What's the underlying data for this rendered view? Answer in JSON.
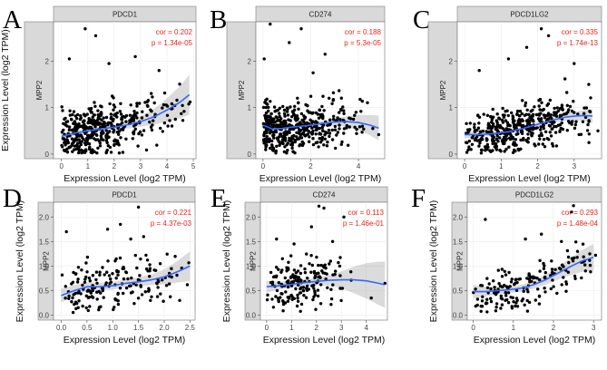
{
  "chart_data": [
    {
      "id": "A",
      "type": "scatter",
      "panel_letter": "A",
      "title": "PDCD1",
      "facet_label": "MPP2",
      "xlabel": "Expression Level (log2 TPM)",
      "ylabel": "Expression Level (log2 TPM)",
      "xlim": [
        -0.3,
        5.1
      ],
      "ylim": [
        -0.1,
        2.85
      ],
      "xticks": [
        0,
        1,
        2,
        3,
        4,
        5
      ],
      "yticks": [
        0,
        1,
        2
      ],
      "cor_text": "cor = 0.202",
      "p_text": "p = 1.34e-05",
      "n_points": 430,
      "x_gamma": 1.3,
      "x_density": [
        [
          0,
          0.03
        ],
        [
          0.4,
          0.14
        ],
        [
          0.8,
          0.2
        ],
        [
          1.2,
          0.18
        ],
        [
          1.6,
          0.12
        ],
        [
          2.0,
          0.09
        ],
        [
          2.5,
          0.07
        ],
        [
          3.0,
          0.05
        ],
        [
          3.5,
          0.03
        ],
        [
          4.0,
          0.02
        ],
        [
          4.6,
          0.01
        ],
        [
          4.9,
          0.005
        ]
      ],
      "y_spread": 0.38,
      "seed": 11,
      "trend": [
        [
          0,
          0.38
        ],
        [
          0.5,
          0.45
        ],
        [
          1.0,
          0.5
        ],
        [
          1.5,
          0.54
        ],
        [
          2.0,
          0.58
        ],
        [
          2.5,
          0.63
        ],
        [
          3.0,
          0.7
        ],
        [
          3.5,
          0.8
        ],
        [
          4.0,
          0.95
        ],
        [
          4.5,
          1.12
        ],
        [
          4.85,
          1.28
        ]
      ],
      "band": [
        0.05,
        0.06,
        0.05,
        0.05,
        0.06,
        0.08,
        0.11,
        0.17,
        0.25,
        0.35,
        0.43
      ],
      "extras": [
        [
          0.9,
          2.7
        ],
        [
          1.3,
          2.55
        ],
        [
          2.8,
          2.1
        ],
        [
          0.3,
          2.05
        ],
        [
          3.7,
          1.8
        ],
        [
          4.2,
          0.98
        ],
        [
          4.65,
          0.92
        ],
        [
          3.05,
          0.78
        ],
        [
          1.8,
          1.95
        ]
      ]
    },
    {
      "id": "B",
      "type": "scatter",
      "panel_letter": "B",
      "title": "CD274",
      "facet_label": "MPP2",
      "xlabel": "Expression Level (log2 TPM)",
      "ylabel": "",
      "xlim": [
        -0.3,
        5.1
      ],
      "ylim": [
        -0.1,
        2.85
      ],
      "xticks": [
        0,
        2,
        4
      ],
      "yticks": [
        0,
        1,
        2
      ],
      "cor_text": "cor = 0.188",
      "p_text": "p = 5.3e-05",
      "n_points": 430,
      "x_gamma": 1.0,
      "x_density": [
        [
          0,
          0.14
        ],
        [
          0.3,
          0.2
        ],
        [
          0.8,
          0.19
        ],
        [
          1.3,
          0.15
        ],
        [
          1.8,
          0.12
        ],
        [
          2.3,
          0.09
        ],
        [
          2.8,
          0.06
        ],
        [
          3.3,
          0.04
        ],
        [
          3.8,
          0.02
        ],
        [
          4.3,
          0.015
        ],
        [
          4.8,
          0.005
        ]
      ],
      "y_spread": 0.4,
      "seed": 23,
      "trend": [
        [
          0,
          0.62
        ],
        [
          0.4,
          0.54
        ],
        [
          0.8,
          0.55
        ],
        [
          1.2,
          0.58
        ],
        [
          1.6,
          0.6
        ],
        [
          2.0,
          0.62
        ],
        [
          2.5,
          0.66
        ],
        [
          3.0,
          0.69
        ],
        [
          3.5,
          0.7
        ],
        [
          4.0,
          0.68
        ],
        [
          4.5,
          0.62
        ],
        [
          4.85,
          0.56
        ]
      ],
      "band": [
        0.09,
        0.05,
        0.04,
        0.04,
        0.04,
        0.05,
        0.06,
        0.08,
        0.11,
        0.16,
        0.22,
        0.27
      ],
      "extras": [
        [
          1.6,
          2.7
        ],
        [
          0.3,
          2.8
        ],
        [
          1.1,
          2.4
        ],
        [
          2.6,
          2.15
        ],
        [
          3.9,
          0.9
        ],
        [
          4.85,
          0.42
        ],
        [
          4.6,
          0.55
        ],
        [
          0.05,
          2.05
        ],
        [
          2.1,
          1.75
        ]
      ]
    },
    {
      "id": "C",
      "type": "scatter",
      "panel_letter": "C",
      "title": "PDCD1LG2",
      "facet_label": "MPP2",
      "xlabel": "Expression Level (log2 TPM)",
      "ylabel": "",
      "xlim": [
        -0.2,
        3.75
      ],
      "ylim": [
        -0.1,
        2.85
      ],
      "xticks": [
        0,
        1,
        2,
        3
      ],
      "yticks": [
        0,
        1,
        2
      ],
      "cor_text": "cor = 0.335",
      "p_text": "p = 1.74e-13",
      "n_points": 430,
      "x_gamma": 1.0,
      "x_density": [
        [
          0,
          0.03
        ],
        [
          0.3,
          0.1
        ],
        [
          0.7,
          0.15
        ],
        [
          1.1,
          0.16
        ],
        [
          1.5,
          0.15
        ],
        [
          1.9,
          0.12
        ],
        [
          2.3,
          0.1
        ],
        [
          2.7,
          0.07
        ],
        [
          3.1,
          0.05
        ],
        [
          3.5,
          0.02
        ]
      ],
      "y_spread": 0.37,
      "seed": 37,
      "trend": [
        [
          0,
          0.42
        ],
        [
          0.4,
          0.42
        ],
        [
          0.8,
          0.44
        ],
        [
          1.2,
          0.48
        ],
        [
          1.6,
          0.55
        ],
        [
          2.0,
          0.64
        ],
        [
          2.4,
          0.73
        ],
        [
          2.8,
          0.8
        ],
        [
          3.2,
          0.83
        ],
        [
          3.5,
          0.82
        ]
      ],
      "band": [
        0.08,
        0.05,
        0.04,
        0.04,
        0.04,
        0.05,
        0.06,
        0.08,
        0.11,
        0.15
      ],
      "extras": [
        [
          2.1,
          2.7
        ],
        [
          2.3,
          2.55
        ],
        [
          1.7,
          2.3
        ],
        [
          3.0,
          1.95
        ],
        [
          3.4,
          1.5
        ],
        [
          0.4,
          1.8
        ],
        [
          3.65,
          0.5
        ],
        [
          1.2,
          2.05
        ],
        [
          2.75,
          1.62
        ]
      ]
    },
    {
      "id": "D",
      "type": "scatter",
      "panel_letter": "D",
      "title": "PDCD1",
      "facet_label": "MPP2",
      "xlabel": "Expression Level (log2 TPM)",
      "ylabel": "Expression Level (log2 TPM)",
      "xlim": [
        -0.15,
        2.6
      ],
      "ylim": [
        -0.1,
        2.3
      ],
      "xticks": [
        0.0,
        0.5,
        1.0,
        1.5,
        2.0,
        2.5
      ],
      "yticks": [
        0.0,
        0.5,
        1.0,
        1.5,
        2.0
      ],
      "cor_text": "cor = 0.221",
      "p_text": "p = 4.37e-03",
      "n_points": 170,
      "x_gamma": 1.0,
      "x_density": [
        [
          0,
          0.04
        ],
        [
          0.25,
          0.08
        ],
        [
          0.5,
          0.11
        ],
        [
          0.75,
          0.12
        ],
        [
          1.0,
          0.12
        ],
        [
          1.25,
          0.11
        ],
        [
          1.5,
          0.1
        ],
        [
          1.75,
          0.08
        ],
        [
          2.0,
          0.06
        ],
        [
          2.25,
          0.04
        ],
        [
          2.5,
          0.02
        ]
      ],
      "y_spread": 0.38,
      "seed": 53,
      "trend": [
        [
          0,
          0.4
        ],
        [
          0.25,
          0.5
        ],
        [
          0.5,
          0.58
        ],
        [
          0.75,
          0.58
        ],
        [
          1.0,
          0.6
        ],
        [
          1.25,
          0.65
        ],
        [
          1.5,
          0.68
        ],
        [
          1.75,
          0.72
        ],
        [
          2.0,
          0.78
        ],
        [
          2.25,
          0.88
        ],
        [
          2.5,
          1.0
        ]
      ],
      "band": [
        0.14,
        0.11,
        0.09,
        0.08,
        0.08,
        0.08,
        0.09,
        0.11,
        0.15,
        0.22,
        0.3
      ],
      "extras": [
        [
          1.5,
          2.2
        ],
        [
          1.35,
          1.55
        ],
        [
          1.6,
          1.6
        ],
        [
          0.1,
          1.7
        ],
        [
          2.45,
          0.62
        ],
        [
          2.3,
          0.3
        ],
        [
          2.1,
          0.85
        ],
        [
          0.9,
          1.75
        ],
        [
          1.15,
          1.85
        ]
      ]
    },
    {
      "id": "E",
      "type": "scatter",
      "panel_letter": "E",
      "title": "CD274",
      "facet_label": "MPP2",
      "xlabel": "Expression Level (log2 TPM)",
      "ylabel": "Expression Level (log2 TPM)",
      "xlim": [
        -0.25,
        4.85
      ],
      "ylim": [
        -0.1,
        2.3
      ],
      "xticks": [
        0,
        1,
        2,
        3,
        4
      ],
      "yticks": [
        0.0,
        0.5,
        1.0,
        1.5,
        2.0
      ],
      "cor_text": "cor = 0.113",
      "p_text": "p = 1.46e-01",
      "n_points": 170,
      "x_gamma": 1.0,
      "x_density": [
        [
          0,
          0.08
        ],
        [
          0.3,
          0.12
        ],
        [
          0.7,
          0.14
        ],
        [
          1.1,
          0.14
        ],
        [
          1.5,
          0.12
        ],
        [
          1.9,
          0.1
        ],
        [
          2.3,
          0.08
        ],
        [
          2.7,
          0.05
        ],
        [
          3.1,
          0.025
        ],
        [
          3.6,
          0.01
        ]
      ],
      "y_spread": 0.37,
      "seed": 71,
      "trend": [
        [
          0,
          0.58
        ],
        [
          0.5,
          0.6
        ],
        [
          1.0,
          0.63
        ],
        [
          1.5,
          0.66
        ],
        [
          2.0,
          0.69
        ],
        [
          2.5,
          0.71
        ],
        [
          3.0,
          0.72
        ],
        [
          3.5,
          0.72
        ],
        [
          4.0,
          0.7
        ],
        [
          4.5,
          0.65
        ],
        [
          4.75,
          0.62
        ]
      ],
      "band": [
        0.12,
        0.08,
        0.07,
        0.07,
        0.08,
        0.11,
        0.17,
        0.27,
        0.36,
        0.44,
        0.47
      ],
      "extras": [
        [
          2.1,
          2.22
        ],
        [
          2.3,
          2.18
        ],
        [
          3.1,
          2.0
        ],
        [
          1.8,
          1.8
        ],
        [
          4.75,
          0.65
        ],
        [
          4.2,
          0.35
        ],
        [
          0.4,
          1.55
        ],
        [
          2.65,
          1.5
        ],
        [
          1.1,
          1.45
        ]
      ]
    },
    {
      "id": "F",
      "type": "scatter",
      "panel_letter": "F",
      "title": "PDCD1LG2",
      "facet_label": "MPP2",
      "xlabel": "Expression Level (log2 TPM)",
      "ylabel": "Expression Level (log2 TPM)",
      "xlim": [
        -0.15,
        3.2
      ],
      "ylim": [
        -0.1,
        2.3
      ],
      "xticks": [
        0,
        1,
        2,
        3
      ],
      "yticks": [
        0.0,
        0.5,
        1.0,
        1.5,
        2.0
      ],
      "cor_text": "cor = 0.293",
      "p_text": "p = 1.48e-04",
      "n_points": 170,
      "x_gamma": 1.0,
      "x_density": [
        [
          0,
          0.02
        ],
        [
          0.3,
          0.07
        ],
        [
          0.6,
          0.1
        ],
        [
          0.9,
          0.11
        ],
        [
          1.2,
          0.11
        ],
        [
          1.5,
          0.1
        ],
        [
          1.8,
          0.09
        ],
        [
          2.1,
          0.07
        ],
        [
          2.4,
          0.05
        ],
        [
          2.7,
          0.03
        ],
        [
          3.0,
          0.02
        ]
      ],
      "y_spread": 0.36,
      "seed": 89,
      "trend": [
        [
          0,
          0.48
        ],
        [
          0.3,
          0.48
        ],
        [
          0.6,
          0.5
        ],
        [
          0.9,
          0.52
        ],
        [
          1.2,
          0.55
        ],
        [
          1.5,
          0.62
        ],
        [
          1.8,
          0.72
        ],
        [
          2.1,
          0.85
        ],
        [
          2.4,
          0.98
        ],
        [
          2.7,
          1.1
        ],
        [
          3.0,
          1.18
        ]
      ],
      "band": [
        0.14,
        0.1,
        0.08,
        0.07,
        0.07,
        0.08,
        0.1,
        0.13,
        0.17,
        0.22,
        0.27
      ],
      "extras": [
        [
          2.5,
          2.23
        ],
        [
          2.45,
          2.1
        ],
        [
          1.7,
          1.65
        ],
        [
          2.2,
          1.5
        ],
        [
          3.05,
          1.22
        ],
        [
          0.3,
          1.95
        ],
        [
          2.6,
          1.3
        ],
        [
          1.3,
          1.55
        ],
        [
          2.8,
          0.9
        ]
      ]
    }
  ]
}
